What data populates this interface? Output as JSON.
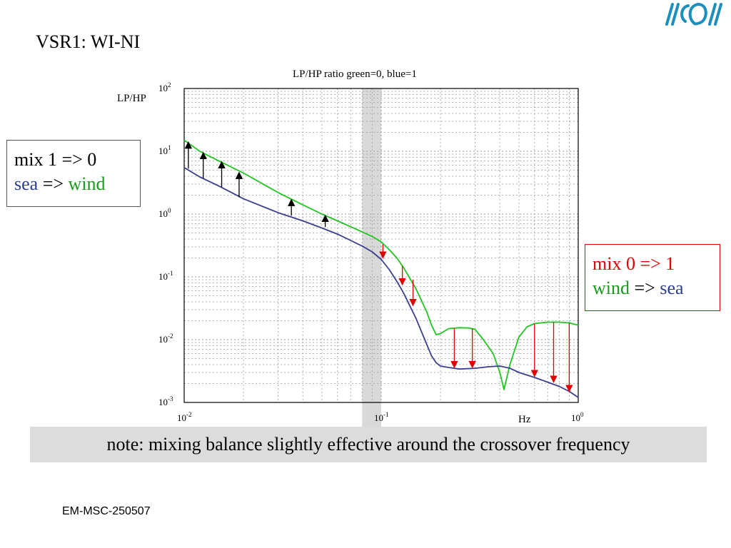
{
  "slide": {
    "title": "VSR1: WI-NI",
    "footer": "EM-MSC-250507",
    "note": "note: mixing balance slightly effective around the crossover frequency"
  },
  "box_left": {
    "line1": "mix 1 => 0",
    "line2_a": "sea",
    "line2_b": " => ",
    "line2_c": "wind"
  },
  "box_right": {
    "line1": "mix 0 => 1",
    "line2_a": "wind",
    "line2_b": " => ",
    "line2_c": "sea"
  },
  "colors": {
    "green": "#22c422",
    "blue": "#3a3f8f",
    "red": "#e00000",
    "crossover_band": "#d9d9d9",
    "grid": "#9a9a9a"
  },
  "chart_data": {
    "type": "line",
    "title": "LP/HP ratio green=0, blue=1",
    "ylabel": "LP/HP",
    "xlabel": "Hz",
    "xscale": "log",
    "yscale": "log",
    "xlim": [
      0.01,
      1
    ],
    "ylim": [
      0.001,
      100
    ],
    "grid": true,
    "x_ticks": [
      {
        "base": "10",
        "exp": "-2",
        "value": 0.01
      },
      {
        "base": "10",
        "exp": "-1",
        "value": 0.1
      },
      {
        "base": "10",
        "exp": "0",
        "value": 1
      }
    ],
    "y_ticks": [
      {
        "base": "10",
        "exp": "2",
        "value": 100
      },
      {
        "base": "10",
        "exp": "1",
        "value": 10
      },
      {
        "base": "10",
        "exp": "0",
        "value": 1
      },
      {
        "base": "10",
        "exp": "-1",
        "value": 0.1
      },
      {
        "base": "10",
        "exp": "-2",
        "value": 0.01
      },
      {
        "base": "10",
        "exp": "-3",
        "value": 0.001
      }
    ],
    "crossover_band_hz": [
      0.08,
      0.1
    ],
    "series": [
      {
        "color": "green",
        "x": [
          0.01,
          0.012,
          0.015,
          0.02,
          0.03,
          0.04,
          0.05,
          0.06,
          0.07,
          0.08,
          0.09,
          0.1,
          0.11,
          0.12,
          0.13,
          0.15,
          0.17,
          0.18,
          0.19,
          0.2,
          0.22,
          0.25,
          0.28,
          0.3,
          0.33,
          0.37,
          0.4,
          0.42,
          0.45,
          0.5,
          0.55,
          0.6,
          0.7,
          0.8,
          0.9,
          1.0
        ],
        "y": [
          15,
          10,
          7,
          4.5,
          2.2,
          1.4,
          1.0,
          0.78,
          0.63,
          0.52,
          0.44,
          0.36,
          0.27,
          0.2,
          0.14,
          0.065,
          0.028,
          0.017,
          0.012,
          0.0125,
          0.015,
          0.0155,
          0.0153,
          0.0145,
          0.01,
          0.006,
          0.003,
          0.0016,
          0.004,
          0.011,
          0.016,
          0.018,
          0.019,
          0.019,
          0.0185,
          0.017
        ]
      },
      {
        "color": "blue",
        "x": [
          0.01,
          0.012,
          0.015,
          0.02,
          0.03,
          0.04,
          0.05,
          0.06,
          0.07,
          0.08,
          0.09,
          0.1,
          0.11,
          0.12,
          0.13,
          0.15,
          0.17,
          0.18,
          0.19,
          0.2,
          0.22,
          0.25,
          0.3,
          0.35,
          0.4,
          0.45,
          0.5,
          0.6,
          0.7,
          0.8,
          0.9,
          1.0
        ],
        "y": [
          5.5,
          3.9,
          2.8,
          1.75,
          1.05,
          0.78,
          0.6,
          0.48,
          0.38,
          0.31,
          0.25,
          0.19,
          0.13,
          0.085,
          0.055,
          0.022,
          0.0085,
          0.0055,
          0.0043,
          0.0038,
          0.0036,
          0.0034,
          0.0035,
          0.0037,
          0.0038,
          0.0035,
          0.003,
          0.0025,
          0.0021,
          0.0018,
          0.0015,
          0.0012
        ]
      }
    ],
    "arrows_up": [
      {
        "x": 0.0105,
        "from": 5.3,
        "to": 14
      },
      {
        "x": 0.0125,
        "from": 3.7,
        "to": 9.5
      },
      {
        "x": 0.0155,
        "from": 2.7,
        "to": 6.8
      },
      {
        "x": 0.019,
        "from": 1.85,
        "to": 4.6
      },
      {
        "x": 0.035,
        "from": 0.94,
        "to": 1.7
      },
      {
        "x": 0.052,
        "from": 0.62,
        "to": 0.95
      }
    ],
    "arrows_down": [
      {
        "x": 0.102,
        "from": 0.33,
        "to": 0.2
      },
      {
        "x": 0.128,
        "from": 0.15,
        "to": 0.075
      },
      {
        "x": 0.145,
        "from": 0.09,
        "to": 0.035
      },
      {
        "x": 0.235,
        "from": 0.015,
        "to": 0.0036
      },
      {
        "x": 0.29,
        "from": 0.0152,
        "to": 0.0036
      },
      {
        "x": 0.6,
        "from": 0.018,
        "to": 0.0026
      },
      {
        "x": 0.75,
        "from": 0.019,
        "to": 0.0021
      },
      {
        "x": 0.9,
        "from": 0.0185,
        "to": 0.0015
      }
    ]
  }
}
